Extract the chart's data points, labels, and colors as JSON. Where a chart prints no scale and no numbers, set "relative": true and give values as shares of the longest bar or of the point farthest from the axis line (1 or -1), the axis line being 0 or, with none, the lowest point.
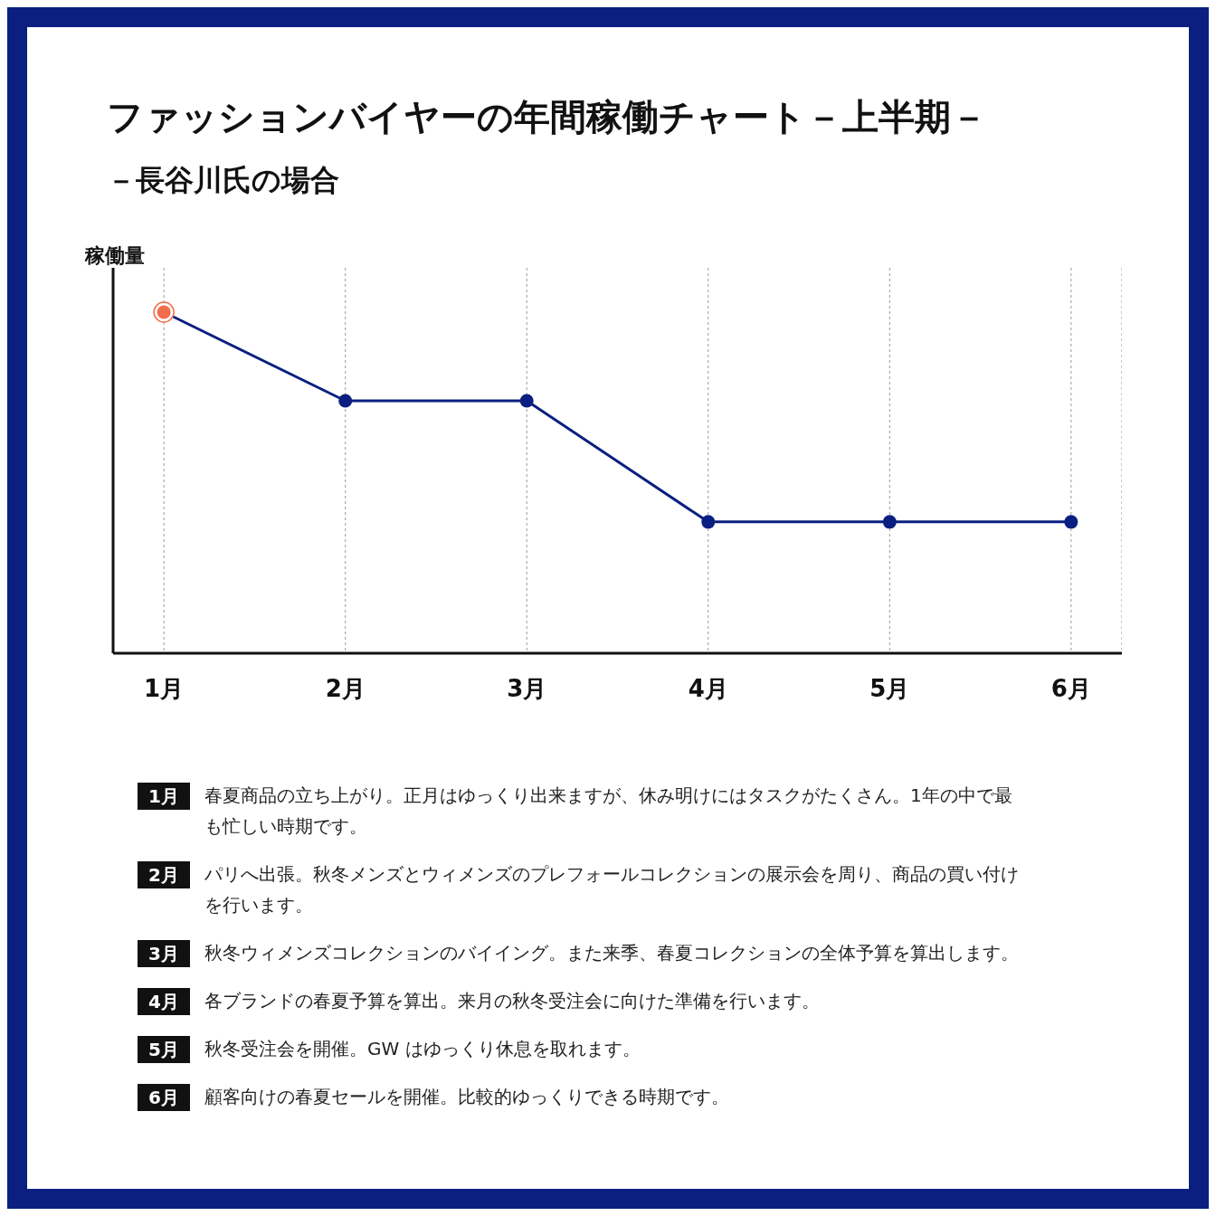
{
  "chart_data": {
    "type": "line",
    "title": "ファッションバイヤーの年間稼働チャート－上半期－",
    "subtitle": "－長谷川氏の場合",
    "ylabel": "稼働量",
    "relative": true,
    "grid": "x",
    "marker": "circle",
    "legend": false,
    "categories": [
      "1月",
      "2月",
      "3月",
      "4月",
      "5月",
      "6月"
    ],
    "series": [
      {
        "color": "#0a1f7f",
        "colors": [
          "#f26b4a",
          "#0a1f7f",
          "#0a1f7f",
          "#0a1f7f",
          "#0a1f7f",
          "#0a1f7f"
        ],
        "values": [
          1,
          0.74,
          0.74,
          0.385,
          0.385,
          0.385
        ]
      }
    ],
    "annotations": [
      "1月",
      "春夏商品の立ち上がり。正月はゆっくり出来ますが、休み明けにはタスクがたくさん。1年の中で最も忙しい時期です。",
      "2月",
      "パリへ出張。秋冬メンズとウィメンズのプレフォールコレクションの展示会を周り、商品の買い付けを行います。",
      "3月",
      "秋冬ウィメンズコレクションのバイイング。また来季、春夏コレクションの全体予算を算出します。",
      "4月",
      "各ブランドの春夏予算を算出。来月の秋冬受注会に向けた準備を行います。",
      "5月",
      "秋冬受注会を開催。GW はゆっくり休息を取れます。",
      "6月",
      "顧客向けの春夏セールを開催。比較的ゆっくりできる時期です。"
    ]
  }
}
